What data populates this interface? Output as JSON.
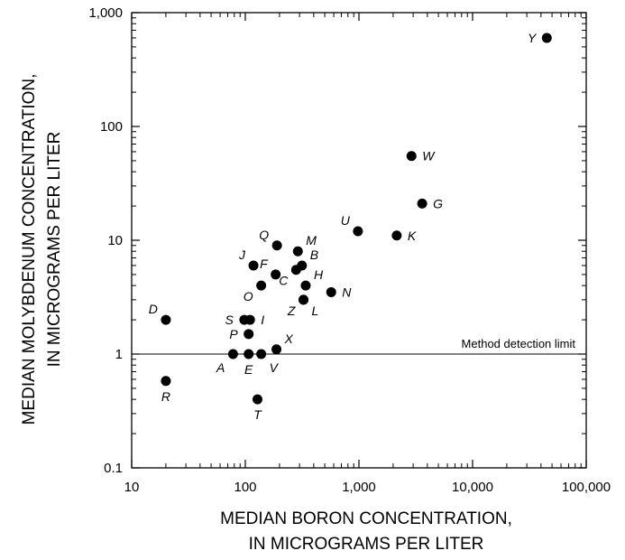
{
  "chart_data": {
    "type": "scatter",
    "xlabel_lines": [
      "MEDIAN BORON CONCENTRATION,",
      "IN MICROGRAMS PER LITER"
    ],
    "ylabel_lines": [
      "MEDIAN MOLYBDENUM CONCENTRATION,",
      "IN MICROGRAMS PER LITER"
    ],
    "x_scale": "log",
    "y_scale": "log",
    "xlim": [
      10,
      100000
    ],
    "ylim": [
      0.1,
      1000
    ],
    "x_ticks": [
      {
        "value": 10,
        "label": "10"
      },
      {
        "value": 100,
        "label": "100"
      },
      {
        "value": 1000,
        "label": "1,000"
      },
      {
        "value": 10000,
        "label": "10,000"
      },
      {
        "value": 100000,
        "label": "100,000"
      }
    ],
    "y_ticks": [
      {
        "value": 0.1,
        "label": "0.1"
      },
      {
        "value": 1,
        "label": "1"
      },
      {
        "value": 10,
        "label": "10"
      },
      {
        "value": 100,
        "label": "100"
      },
      {
        "value": 1000,
        "label": "1,000"
      }
    ],
    "grid": false,
    "reference_line": {
      "y": 1,
      "label": "Method detection limit"
    },
    "points": [
      {
        "label": "A",
        "x": 78,
        "y": 1.0,
        "anchor": "below-left"
      },
      {
        "label": "B",
        "x": 315,
        "y": 6.0,
        "anchor": "upper-right"
      },
      {
        "label": "C",
        "x": 280,
        "y": 5.5,
        "anchor": "lower-left"
      },
      {
        "label": "D",
        "x": 20,
        "y": 2.0,
        "anchor": "upper-left"
      },
      {
        "label": "E",
        "x": 107,
        "y": 1.0,
        "anchor": "below"
      },
      {
        "label": "F",
        "x": 185,
        "y": 5.0,
        "anchor": "upper-left"
      },
      {
        "label": "G",
        "x": 3600,
        "y": 21.0,
        "anchor": "right"
      },
      {
        "label": "H",
        "x": 340,
        "y": 4.0,
        "anchor": "upper-right"
      },
      {
        "label": "I",
        "x": 110,
        "y": 2.0,
        "anchor": "right"
      },
      {
        "label": "J",
        "x": 118,
        "y": 6.0,
        "anchor": "upper-left"
      },
      {
        "label": "K",
        "x": 2150,
        "y": 11.0,
        "anchor": "right"
      },
      {
        "label": "L",
        "x": 325,
        "y": 3.0,
        "anchor": "lower-right"
      },
      {
        "label": "M",
        "x": 290,
        "y": 8.0,
        "anchor": "upper-right"
      },
      {
        "label": "N",
        "x": 570,
        "y": 3.5,
        "anchor": "right"
      },
      {
        "label": "O",
        "x": 138,
        "y": 4.0,
        "anchor": "lower-left"
      },
      {
        "label": "P",
        "x": 107,
        "y": 1.5,
        "anchor": "left"
      },
      {
        "label": "Q",
        "x": 190,
        "y": 9.0,
        "anchor": "upper-left"
      },
      {
        "label": "R",
        "x": 20,
        "y": 0.58,
        "anchor": "below"
      },
      {
        "label": "S",
        "x": 98,
        "y": 2.0,
        "anchor": "left"
      },
      {
        "label": "T",
        "x": 128,
        "y": 0.4,
        "anchor": "below"
      },
      {
        "label": "U",
        "x": 980,
        "y": 12.0,
        "anchor": "upper-left"
      },
      {
        "label": "V",
        "x": 138,
        "y": 1.0,
        "anchor": "below-right"
      },
      {
        "label": "W",
        "x": 2900,
        "y": 55.0,
        "anchor": "right"
      },
      {
        "label": "X",
        "x": 188,
        "y": 1.1,
        "anchor": "upper-right"
      },
      {
        "label": "Y",
        "x": 45000,
        "y": 600.0,
        "anchor": "left"
      },
      {
        "label": "Z",
        "x": 325,
        "y": 3.0,
        "anchor": "lower-left"
      }
    ]
  }
}
